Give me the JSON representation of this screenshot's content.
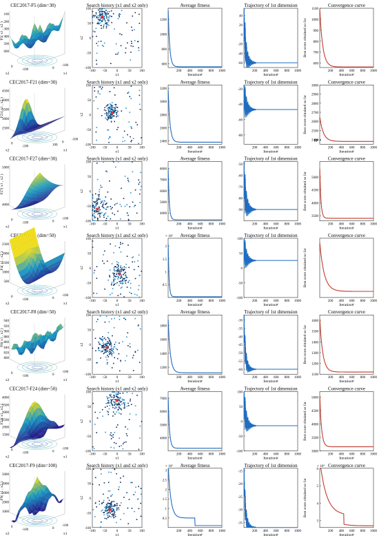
{
  "colors": {
    "line": "#1f6cc0",
    "conv": "#c0392b",
    "dot_dark": "#0a2a5a",
    "dot_light": "#2a8fd0",
    "best": "#e03030",
    "surf_low": "#2a1a8c",
    "surf_mid": "#1fa0c8",
    "surf_high": "#f2e01c"
  },
  "common": {
    "iter_label": "Iteration#",
    "search_title": "Search history (x1 and x2 only)",
    "avg_title": "Average fitness",
    "traj_title": "Trajectory of 1st dimension",
    "conv_title": "Convergence curve",
    "conv_ylabel": "Best score obtained so far",
    "x1_label": "x1",
    "x2_label": "x2",
    "surf_x1": "x1",
    "surf_x2": "x2",
    "iter_ticks": [
      "200",
      "400",
      "600",
      "800",
      "1000"
    ],
    "search_ticks": [
      "-100",
      "-50",
      "0",
      "50",
      "100"
    ]
  },
  "chart_data": [
    {
      "title": "CEC2017-F5 (dim=30)",
      "zlabel": "F5( x1 , x2 )",
      "surface": "wave",
      "zticks": [
        "100",
        "200",
        "300",
        "400",
        "500",
        "600"
      ],
      "x1ticks": [
        "0",
        "-100"
      ],
      "x2ticks": [
        "0",
        "-100"
      ],
      "search": {
        "center": [
          -60,
          70
        ],
        "spread": 38,
        "yticks": [
          "100",
          "50",
          "0",
          "-50",
          "-100"
        ]
      },
      "avg": {
        "ylim": [
          550,
          1350
        ],
        "yticks": [
          "1200",
          "1000",
          "800",
          "600"
        ],
        "start": 1350,
        "end": 560,
        "rate": 0.035,
        "step_iter": 150,
        "step_drop": 0,
        "exponent": ""
      },
      "traj": {
        "ylim": [
          -70,
          55
        ],
        "yticks": [
          "40",
          "20",
          "0",
          "-20",
          "-40",
          "-60"
        ],
        "start": 50,
        "final": -60,
        "amp": 60
      },
      "conv": {
        "ylim": [
          560,
          1100
        ],
        "yticks": [
          "1100",
          "1000",
          "900",
          "800",
          "700",
          "600"
        ],
        "start": 1100,
        "end": 565,
        "rate": 0.018,
        "step_iter": 0,
        "step_drop": 0,
        "log": false
      }
    },
    {
      "title": "CEC2017-F21 (dim=30)",
      "zlabel": "F21( x1 , x2 )",
      "surface": "peak",
      "zticks": [
        "4500",
        "4000",
        "3500",
        "3000",
        "2500"
      ],
      "x1ticks": [
        "100",
        "0",
        "-100"
      ],
      "x2ticks": [
        "0",
        "-100"
      ],
      "search": {
        "center": [
          -20,
          5
        ],
        "spread": 30,
        "yticks": [
          "100",
          "50",
          "0",
          "-50",
          "-100"
        ]
      },
      "avg": {
        "ylim": [
          2350,
          3250
        ],
        "yticks": [
          "3200",
          "3000",
          "2800",
          "2600",
          "2400"
        ],
        "start": 3200,
        "end": 2380,
        "rate": 0.03,
        "step_iter": 0,
        "step_drop": 0,
        "exponent": ""
      },
      "traj": {
        "ylim": [
          -92,
          -15
        ],
        "yticks": [
          "-20",
          "-40",
          "-60",
          "-80"
        ],
        "start": -22,
        "final": -47,
        "amp": 30
      },
      "conv": {
        "ylim": [
          2350,
          3000
        ],
        "yticks": [
          "3000",
          "2900",
          "2800",
          "2700",
          "2600",
          "2500",
          "2400"
        ],
        "start": 2650,
        "end": 2380,
        "rate": 0.015,
        "step_iter": 0,
        "step_drop": 0,
        "log": false
      }
    },
    {
      "title": "CEC2017-F27 (dim=30)",
      "zlabel": "F27( x1 , x2 )",
      "surface": "valley",
      "zticks": [
        "5000",
        "4000"
      ],
      "x1ticks": [
        "0",
        "-100"
      ],
      "x2ticks": [
        "0",
        "-100"
      ],
      "search": {
        "center": [
          -80,
          -60
        ],
        "spread": 55,
        "yticks": [
          "100",
          "50",
          "0",
          "-50",
          "-100"
        ]
      },
      "avg": {
        "ylim": [
          3300,
          8600
        ],
        "yticks": [
          "8000",
          "7000",
          "6000",
          "5000",
          "4000"
        ],
        "start": 8200,
        "end": 3400,
        "rate": 0.05,
        "step_iter": 0,
        "step_drop": 0,
        "exponent": ""
      },
      "traj": {
        "ylim": [
          -100,
          -48
        ],
        "yticks": [
          "-50",
          "-60",
          "-70",
          "-80",
          "-90"
        ],
        "start": -55,
        "final": -90,
        "amp": 25
      },
      "conv": {
        "ylim": [
          3300,
          5600
        ],
        "yticks": [
          "5000",
          "4500",
          "4000",
          "3500"
        ],
        "start": 5400,
        "end": 3400,
        "rate": 0.045,
        "step_iter": 0,
        "step_drop": 0,
        "log": false
      }
    },
    {
      "title": "CEC2017-F4 (dim=50)",
      "zlabel": "F4( x1 , x2 )",
      "surface": "valley2",
      "zticks": [
        "2500",
        "2000",
        "1500",
        "1000",
        "500"
      ],
      "x1ticks": [
        "0",
        "-100"
      ],
      "x2ticks": [
        "0",
        "-100"
      ],
      "search": {
        "center": [
          10,
          -20
        ],
        "spread": 40,
        "yticks": [
          "100",
          "50",
          "0",
          "-50",
          "-100"
        ]
      },
      "avg": {
        "ylim": [
          0,
          2.3
        ],
        "yticks": [
          "2",
          "1.5",
          "1",
          "0.5"
        ],
        "start": 2.2,
        "end": 0.03,
        "rate": 0.06,
        "step_iter": 0,
        "step_drop": 0,
        "exponent": "× 10⁵"
      },
      "traj": {
        "ylim": [
          -100,
          100
        ],
        "yticks": [
          "100",
          "50",
          "0",
          "-50",
          "-100"
        ],
        "start": 80,
        "final": 25,
        "amp": 70
      },
      "conv": {
        "ylim": [
          2.3,
          5.2
        ],
        "yticks": [
          "10⁴",
          "10³"
        ],
        "start": 5.0,
        "end": 2.6,
        "rate": 0.012,
        "step_iter": 0,
        "step_drop": 0,
        "log": true
      }
    },
    {
      "title": "CEC2017-F8 (dim=50)",
      "zlabel": "F8( x1 , x2 )",
      "surface": "wave2",
      "zticks": [
        "940",
        "920",
        "900",
        "880",
        "860",
        "840",
        "820",
        "800"
      ],
      "x1ticks": [
        "0",
        "-100"
      ],
      "x2ticks": [
        "0",
        "-100"
      ],
      "search": {
        "center": [
          -40,
          -10
        ],
        "spread": 35,
        "yticks": [
          "100",
          "50",
          "0",
          "-50",
          "-100"
        ]
      },
      "avg": {
        "ylim": [
          1100,
          1950
        ],
        "yticks": [
          "1800",
          "1600",
          "1400",
          "1200"
        ],
        "start": 1900,
        "end": 1120,
        "rate": 0.025,
        "step_iter": 0,
        "step_drop": 0,
        "exponent": ""
      },
      "traj": {
        "ylim": [
          -63,
          -27
        ],
        "yticks": [
          "-30",
          "-35",
          "-40",
          "-45",
          "-50",
          "-55",
          "-60"
        ],
        "start": -30,
        "final": -60,
        "amp": 12
      },
      "conv": {
        "ylim": [
          1100,
          1650
        ],
        "yticks": [
          "1600",
          "1500",
          "1400",
          "1300",
          "1200",
          "1100"
        ],
        "start": 1620,
        "end": 1120,
        "rate": 0.018,
        "step_iter": 0,
        "step_drop": 0,
        "log": false
      }
    },
    {
      "title": "CEC2017-F24 (dim=50)",
      "zlabel": "F24( x1 , x2 )",
      "surface": "dome",
      "zticks": [
        "4000",
        "3500",
        "3000",
        "2500",
        "2000",
        "1500"
      ],
      "x1ticks": [
        "0",
        "-100"
      ],
      "x2ticks": [
        "0",
        "-100"
      ],
      "search": {
        "center": [
          0,
          70
        ],
        "spread": 40,
        "yticks": [
          "100",
          "50",
          "0",
          "-50",
          "-100"
        ]
      },
      "avg": {
        "ylim": [
          3000,
          7500
        ],
        "yticks": [
          "7000",
          "6000",
          "5000",
          "4000"
        ],
        "start": 7200,
        "end": 3200,
        "rate": 0.04,
        "step_iter": 0,
        "step_drop": 0,
        "exponent": ""
      },
      "traj": {
        "ylim": [
          -100,
          100
        ],
        "yticks": [
          "100",
          "50",
          "0",
          "-50",
          "-100"
        ],
        "start": 90,
        "final": -15,
        "amp": 80
      },
      "conv": {
        "ylim": [
          3000,
          5200
        ],
        "yticks": [
          "5000",
          "4500",
          "4000",
          "3500",
          "3000"
        ],
        "start": 5100,
        "end": 3150,
        "rate": 0.03,
        "step_iter": 0,
        "step_drop": 0,
        "log": false
      }
    },
    {
      "title": "CEC2017-F9 (dim=100)",
      "zlabel": "F9( x1 , x2 )",
      "surface": "pyramid",
      "zticks": [
        "5000",
        "4000",
        "3000",
        "2000",
        "1000"
      ],
      "x1ticks": [
        "0",
        "-100"
      ],
      "x2ticks": [
        "0",
        "-100"
      ],
      "search": {
        "center": [
          -30,
          -40
        ],
        "spread": 35,
        "yticks": [
          "100",
          "50",
          "0",
          "-50",
          "-100"
        ]
      },
      "avg": {
        "ylim": [
          0,
          3.1
        ],
        "yticks": [
          "3",
          "2.5",
          "2",
          "1.5",
          "1",
          "0.5"
        ],
        "start": 2.9,
        "end": 0.1,
        "rate": 0.02,
        "step_iter": 500,
        "step_drop": 0.4,
        "exponent": "× 10⁵"
      },
      "traj": {
        "ylim": [
          -37,
          -14
        ],
        "yticks": [
          "-15",
          "-20",
          "-25",
          "-30",
          "-35"
        ],
        "start": -15,
        "final": -37,
        "amp": 8
      },
      "conv": {
        "ylim": [
          2.6,
          6.0
        ],
        "yticks": [
          "6",
          "5",
          "4",
          "3"
        ],
        "start": 5.9,
        "end": 2.7,
        "rate": 0.008,
        "step_iter": 450,
        "step_drop": 0.6,
        "log": false,
        "exponent": "× 10⁴"
      }
    }
  ]
}
